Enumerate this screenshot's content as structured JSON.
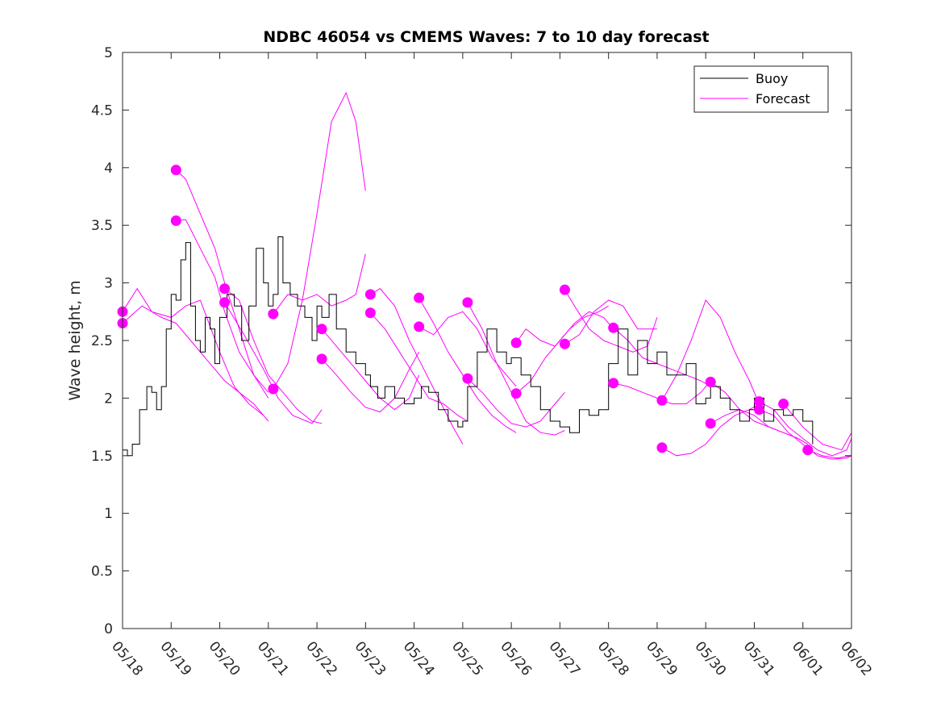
{
  "chart_data": {
    "type": "line",
    "title": "NDBC 46054 vs CMEMS Waves: 7 to 10 day forecast",
    "xlabel": "",
    "ylabel": "Wave height, m",
    "xlim": [
      "05/18",
      "06/02"
    ],
    "ylim": [
      0,
      5
    ],
    "x_tick_labels": [
      "05/18",
      "05/19",
      "05/20",
      "05/21",
      "05/22",
      "05/23",
      "05/24",
      "05/25",
      "05/26",
      "05/27",
      "05/28",
      "05/29",
      "05/30",
      "05/31",
      "06/01",
      "06/02"
    ],
    "y_tick_labels": [
      "0",
      "0.5",
      "1",
      "1.5",
      "2",
      "2.5",
      "3",
      "3.5",
      "4",
      "4.5",
      "5"
    ],
    "y_ticks": [
      0,
      0.5,
      1,
      1.5,
      2,
      2.5,
      3,
      3.5,
      4,
      4.5,
      5
    ],
    "grid": false,
    "legend": {
      "placement": "top-right",
      "entries": [
        "Buoy",
        "Forecast"
      ]
    },
    "colors": {
      "buoy": "#000000",
      "forecast": "#ff00ff"
    },
    "buoy": {
      "name": "Buoy",
      "x_days": [
        0,
        0.1,
        0.2,
        0.35,
        0.5,
        0.6,
        0.7,
        0.8,
        0.9,
        1.0,
        1.1,
        1.2,
        1.3,
        1.4,
        1.5,
        1.6,
        1.7,
        1.8,
        1.9,
        2.0,
        2.15,
        2.3,
        2.45,
        2.6,
        2.75,
        2.9,
        3.0,
        3.1,
        3.2,
        3.3,
        3.45,
        3.6,
        3.75,
        3.9,
        4.0,
        4.1,
        4.25,
        4.4,
        4.6,
        4.8,
        5.0,
        5.1,
        5.25,
        5.4,
        5.6,
        5.8,
        6.0,
        6.15,
        6.3,
        6.5,
        6.7,
        6.9,
        7.0,
        7.1,
        7.3,
        7.5,
        7.7,
        7.9,
        8.0,
        8.2,
        8.4,
        8.6,
        8.8,
        9.0,
        9.2,
        9.4,
        9.6,
        9.8,
        10.0,
        10.2,
        10.4,
        10.6,
        10.8,
        11.0,
        11.2,
        11.4,
        11.6,
        11.8,
        12.0,
        12.1,
        12.3,
        12.5,
        12.7,
        12.9,
        13.0,
        13.2,
        13.4,
        13.6,
        13.8,
        14.0,
        14.2
      ],
      "values": [
        1.55,
        1.5,
        1.6,
        1.9,
        2.1,
        2.05,
        1.9,
        2.1,
        2.6,
        2.9,
        2.85,
        3.2,
        3.35,
        2.8,
        2.5,
        2.4,
        2.7,
        2.6,
        2.3,
        2.7,
        2.9,
        2.8,
        2.5,
        2.8,
        3.3,
        3.0,
        2.8,
        2.9,
        3.4,
        3.0,
        2.9,
        2.8,
        2.7,
        2.5,
        2.8,
        2.7,
        2.9,
        2.6,
        2.4,
        2.3,
        2.2,
        2.1,
        2.0,
        2.1,
        2.0,
        1.95,
        2.0,
        2.1,
        2.05,
        1.9,
        1.8,
        1.75,
        1.8,
        2.1,
        2.4,
        2.6,
        2.4,
        2.3,
        2.35,
        2.2,
        2.1,
        1.9,
        1.8,
        1.75,
        1.7,
        1.9,
        1.85,
        1.9,
        2.3,
        2.6,
        2.2,
        2.5,
        2.3,
        2.4,
        2.2,
        2.2,
        2.3,
        1.95,
        2.0,
        2.1,
        2.0,
        1.9,
        1.8,
        1.9,
        2.0,
        1.8,
        1.9,
        1.85,
        1.9,
        1.8,
        1.6
      ]
    },
    "forecasts": [
      {
        "x_days": [
          0,
          0.3,
          0.6,
          1.0,
          1.3,
          1.6,
          2.0,
          2.3,
          2.6,
          2.9,
          3.0
        ],
        "values": [
          2.75,
          2.95,
          2.75,
          2.7,
          2.8,
          2.85,
          2.4,
          2.1,
          1.95,
          1.85,
          1.8
        ]
      },
      {
        "x_days": [
          0,
          0.4,
          0.8,
          1.1,
          1.4,
          1.8,
          2.1,
          2.4,
          2.7,
          2.9
        ],
        "values": [
          2.65,
          2.8,
          2.7,
          2.65,
          2.5,
          2.3,
          2.15,
          2.05,
          1.95,
          1.85
        ]
      },
      {
        "x_days": [
          1.1,
          1.3,
          1.6,
          1.9,
          2.1,
          2.4,
          2.7,
          3.0
        ],
        "values": [
          3.98,
          3.9,
          3.6,
          3.3,
          3.0,
          2.6,
          2.2,
          2.0
        ]
      },
      {
        "x_days": [
          1.1,
          1.3,
          1.6,
          1.9,
          2.1,
          2.4,
          2.7,
          3.0
        ],
        "values": [
          3.54,
          3.55,
          3.3,
          3.05,
          2.75,
          2.4,
          2.2,
          2.05
        ]
      },
      {
        "x_days": [
          2.1,
          2.4,
          2.7,
          3.0,
          3.3,
          3.6,
          3.9,
          4.1
        ],
        "values": [
          2.95,
          2.85,
          2.5,
          2.2,
          2.05,
          1.9,
          1.8,
          1.78
        ]
      },
      {
        "x_days": [
          2.1,
          2.5,
          2.9,
          3.2,
          3.5,
          3.9,
          4.1
        ],
        "values": [
          2.83,
          2.55,
          2.25,
          2.0,
          1.85,
          1.78,
          1.9
        ]
      },
      {
        "x_days": [
          3.1,
          3.4,
          3.7,
          4.0,
          4.3,
          4.6,
          4.8,
          5.0
        ],
        "values": [
          2.08,
          2.3,
          2.85,
          3.6,
          4.4,
          4.65,
          4.4,
          3.8
        ]
      },
      {
        "x_days": [
          3.1,
          3.4,
          3.7,
          4.0,
          4.3,
          4.6,
          4.8,
          5.0
        ],
        "values": [
          2.73,
          2.9,
          2.85,
          2.9,
          2.8,
          2.85,
          2.9,
          3.25
        ]
      },
      {
        "x_days": [
          4.1,
          4.4,
          4.7,
          5.0,
          5.3,
          5.6,
          5.9,
          6.1
        ],
        "values": [
          2.6,
          2.45,
          2.3,
          2.15,
          2.0,
          1.9,
          2.0,
          2.2
        ]
      },
      {
        "x_days": [
          4.1,
          4.4,
          4.7,
          5.0,
          5.3,
          5.6,
          5.9,
          6.1
        ],
        "values": [
          2.34,
          2.2,
          2.05,
          1.92,
          1.88,
          2.0,
          2.25,
          2.4
        ]
      },
      {
        "x_days": [
          5.1,
          5.3,
          5.6,
          5.9,
          6.2,
          6.5,
          6.8,
          7.0
        ],
        "values": [
          2.9,
          2.95,
          2.8,
          2.5,
          2.25,
          2.0,
          1.75,
          1.6
        ]
      },
      {
        "x_days": [
          5.1,
          5.4,
          5.7,
          6.0,
          6.3,
          6.6,
          6.9,
          7.1
        ],
        "values": [
          2.74,
          2.6,
          2.4,
          2.2,
          2.0,
          1.95,
          1.85,
          1.8
        ]
      },
      {
        "x_days": [
          6.1,
          6.4,
          6.7,
          7.0,
          7.3,
          7.6,
          7.9,
          8.1
        ],
        "values": [
          2.87,
          2.65,
          2.4,
          2.2,
          2.0,
          1.85,
          1.75,
          1.7
        ]
      },
      {
        "x_days": [
          6.1,
          6.4,
          6.7,
          7.0,
          7.3,
          7.6,
          7.9,
          8.1
        ],
        "values": [
          2.62,
          2.55,
          2.7,
          2.75,
          2.6,
          2.35,
          2.2,
          2.1
        ]
      },
      {
        "x_days": [
          7.1,
          7.4,
          7.7,
          8.0,
          8.3,
          8.6,
          8.9,
          9.1
        ],
        "values": [
          2.83,
          2.6,
          2.3,
          2.05,
          1.8,
          1.7,
          1.68,
          1.72
        ]
      },
      {
        "x_days": [
          7.1,
          7.4,
          7.7,
          8.0,
          8.3,
          8.6,
          8.9,
          9.1
        ],
        "values": [
          2.17,
          2.05,
          1.9,
          1.78,
          1.75,
          1.8,
          1.95,
          2.05
        ]
      },
      {
        "x_days": [
          8.1,
          8.3,
          8.6,
          8.9,
          9.2,
          9.5,
          9.8,
          10.0
        ],
        "values": [
          2.48,
          2.6,
          2.5,
          2.45,
          2.6,
          2.7,
          2.75,
          2.8
        ]
      },
      {
        "x_days": [
          8.1,
          8.4,
          8.7,
          9.0,
          9.3,
          9.6,
          9.9,
          10.1
        ],
        "values": [
          2.04,
          2.15,
          2.35,
          2.5,
          2.65,
          2.75,
          2.7,
          2.6
        ]
      },
      {
        "x_days": [
          9.1,
          9.3,
          9.6,
          9.9,
          10.2,
          10.5,
          10.8,
          11.0
        ],
        "values": [
          2.94,
          2.8,
          2.6,
          2.5,
          2.45,
          2.4,
          2.45,
          2.7
        ]
      },
      {
        "x_days": [
          9.1,
          9.4,
          9.7,
          10.0,
          10.3,
          10.6,
          10.8,
          11.0
        ],
        "values": [
          2.47,
          2.55,
          2.75,
          2.85,
          2.8,
          2.6,
          2.6,
          2.6
        ]
      },
      {
        "x_days": [
          10.1,
          10.4,
          10.7,
          11.0,
          11.3,
          11.6,
          11.9,
          12.1
        ],
        "values": [
          2.61,
          2.5,
          2.35,
          2.3,
          2.25,
          2.2,
          2.15,
          2.1
        ]
      },
      {
        "x_days": [
          10.1,
          10.4,
          10.7,
          11.0,
          11.3,
          11.6,
          11.9,
          12.1
        ],
        "values": [
          2.13,
          2.1,
          2.05,
          2.0,
          1.95,
          1.95,
          2.05,
          2.15
        ]
      },
      {
        "x_days": [
          11.1,
          11.4,
          11.7,
          12.0,
          12.3,
          12.6,
          12.9,
          13.1
        ],
        "values": [
          1.98,
          2.2,
          2.5,
          2.85,
          2.7,
          2.4,
          2.15,
          1.95
        ]
      },
      {
        "x_days": [
          11.1,
          11.4,
          11.7,
          12.0,
          12.3,
          12.6,
          12.9,
          13.1
        ],
        "values": [
          1.57,
          1.5,
          1.52,
          1.6,
          1.75,
          1.85,
          1.9,
          1.95
        ]
      },
      {
        "x_days": [
          12.1,
          12.4,
          12.7,
          13.0,
          13.3,
          13.6,
          13.9,
          14.1
        ],
        "values": [
          2.14,
          2.05,
          1.9,
          1.8,
          1.75,
          1.7,
          1.65,
          1.6
        ]
      },
      {
        "x_days": [
          12.1,
          12.4,
          12.7,
          13.0,
          13.3,
          13.6,
          13.9,
          14.1
        ],
        "values": [
          1.78,
          1.85,
          1.9,
          1.85,
          1.75,
          1.7,
          1.65,
          1.6
        ]
      },
      {
        "x_days": [
          13.1,
          13.4,
          13.7,
          14.0,
          14.3,
          14.6,
          14.9,
          15.0
        ],
        "values": [
          1.97,
          1.9,
          1.75,
          1.65,
          1.55,
          1.5,
          1.55,
          1.65
        ]
      },
      {
        "x_days": [
          13.1,
          13.4,
          13.7,
          14.0,
          14.3,
          14.6,
          14.9,
          15.0
        ],
        "values": [
          1.9,
          1.85,
          1.7,
          1.6,
          1.5,
          1.47,
          1.48,
          1.5
        ]
      },
      {
        "x_days": [
          14.1,
          14.4,
          14.7,
          15.0
        ],
        "values": [
          1.55,
          1.5,
          1.48,
          1.5
        ]
      },
      {
        "x_days": [
          13.6,
          14.0,
          14.4,
          14.8,
          15.0
        ],
        "values": [
          1.95,
          1.75,
          1.6,
          1.55,
          1.7
        ]
      }
    ]
  }
}
